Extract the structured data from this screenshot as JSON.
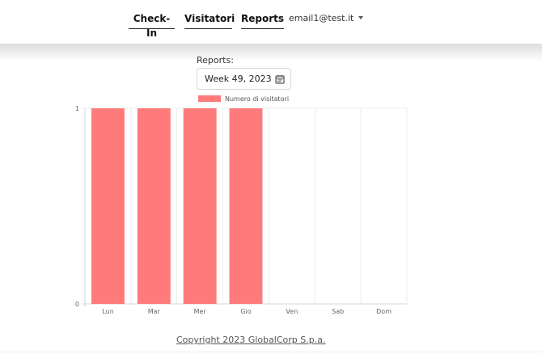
{
  "nav": {
    "links": [
      {
        "label": "Check-In"
      },
      {
        "label": "Visitatori"
      },
      {
        "label": "Reports"
      }
    ],
    "user_email": "email1@test.it"
  },
  "reports": {
    "label": "Reports:",
    "week_value": "Week 49, 2023"
  },
  "icons": {
    "calendar": "calendar-icon",
    "dropdown": "caret-down-icon"
  },
  "chart_data": {
    "type": "bar",
    "categories": [
      "Lun",
      "Mar",
      "Mer",
      "Gio",
      "Ven",
      "Sab",
      "Dom"
    ],
    "series": [
      {
        "name": "Numero di visitatori",
        "values": [
          1,
          1,
          1,
          1,
          0,
          0,
          0
        ],
        "color": "#ff7b7b"
      }
    ],
    "yticks": [
      "0",
      "1"
    ],
    "ylim": [
      0,
      1
    ],
    "grid": true,
    "legend": "top-center"
  },
  "footer": {
    "copyright": "Copyright 2023 GlobalCorp S.p.a."
  }
}
